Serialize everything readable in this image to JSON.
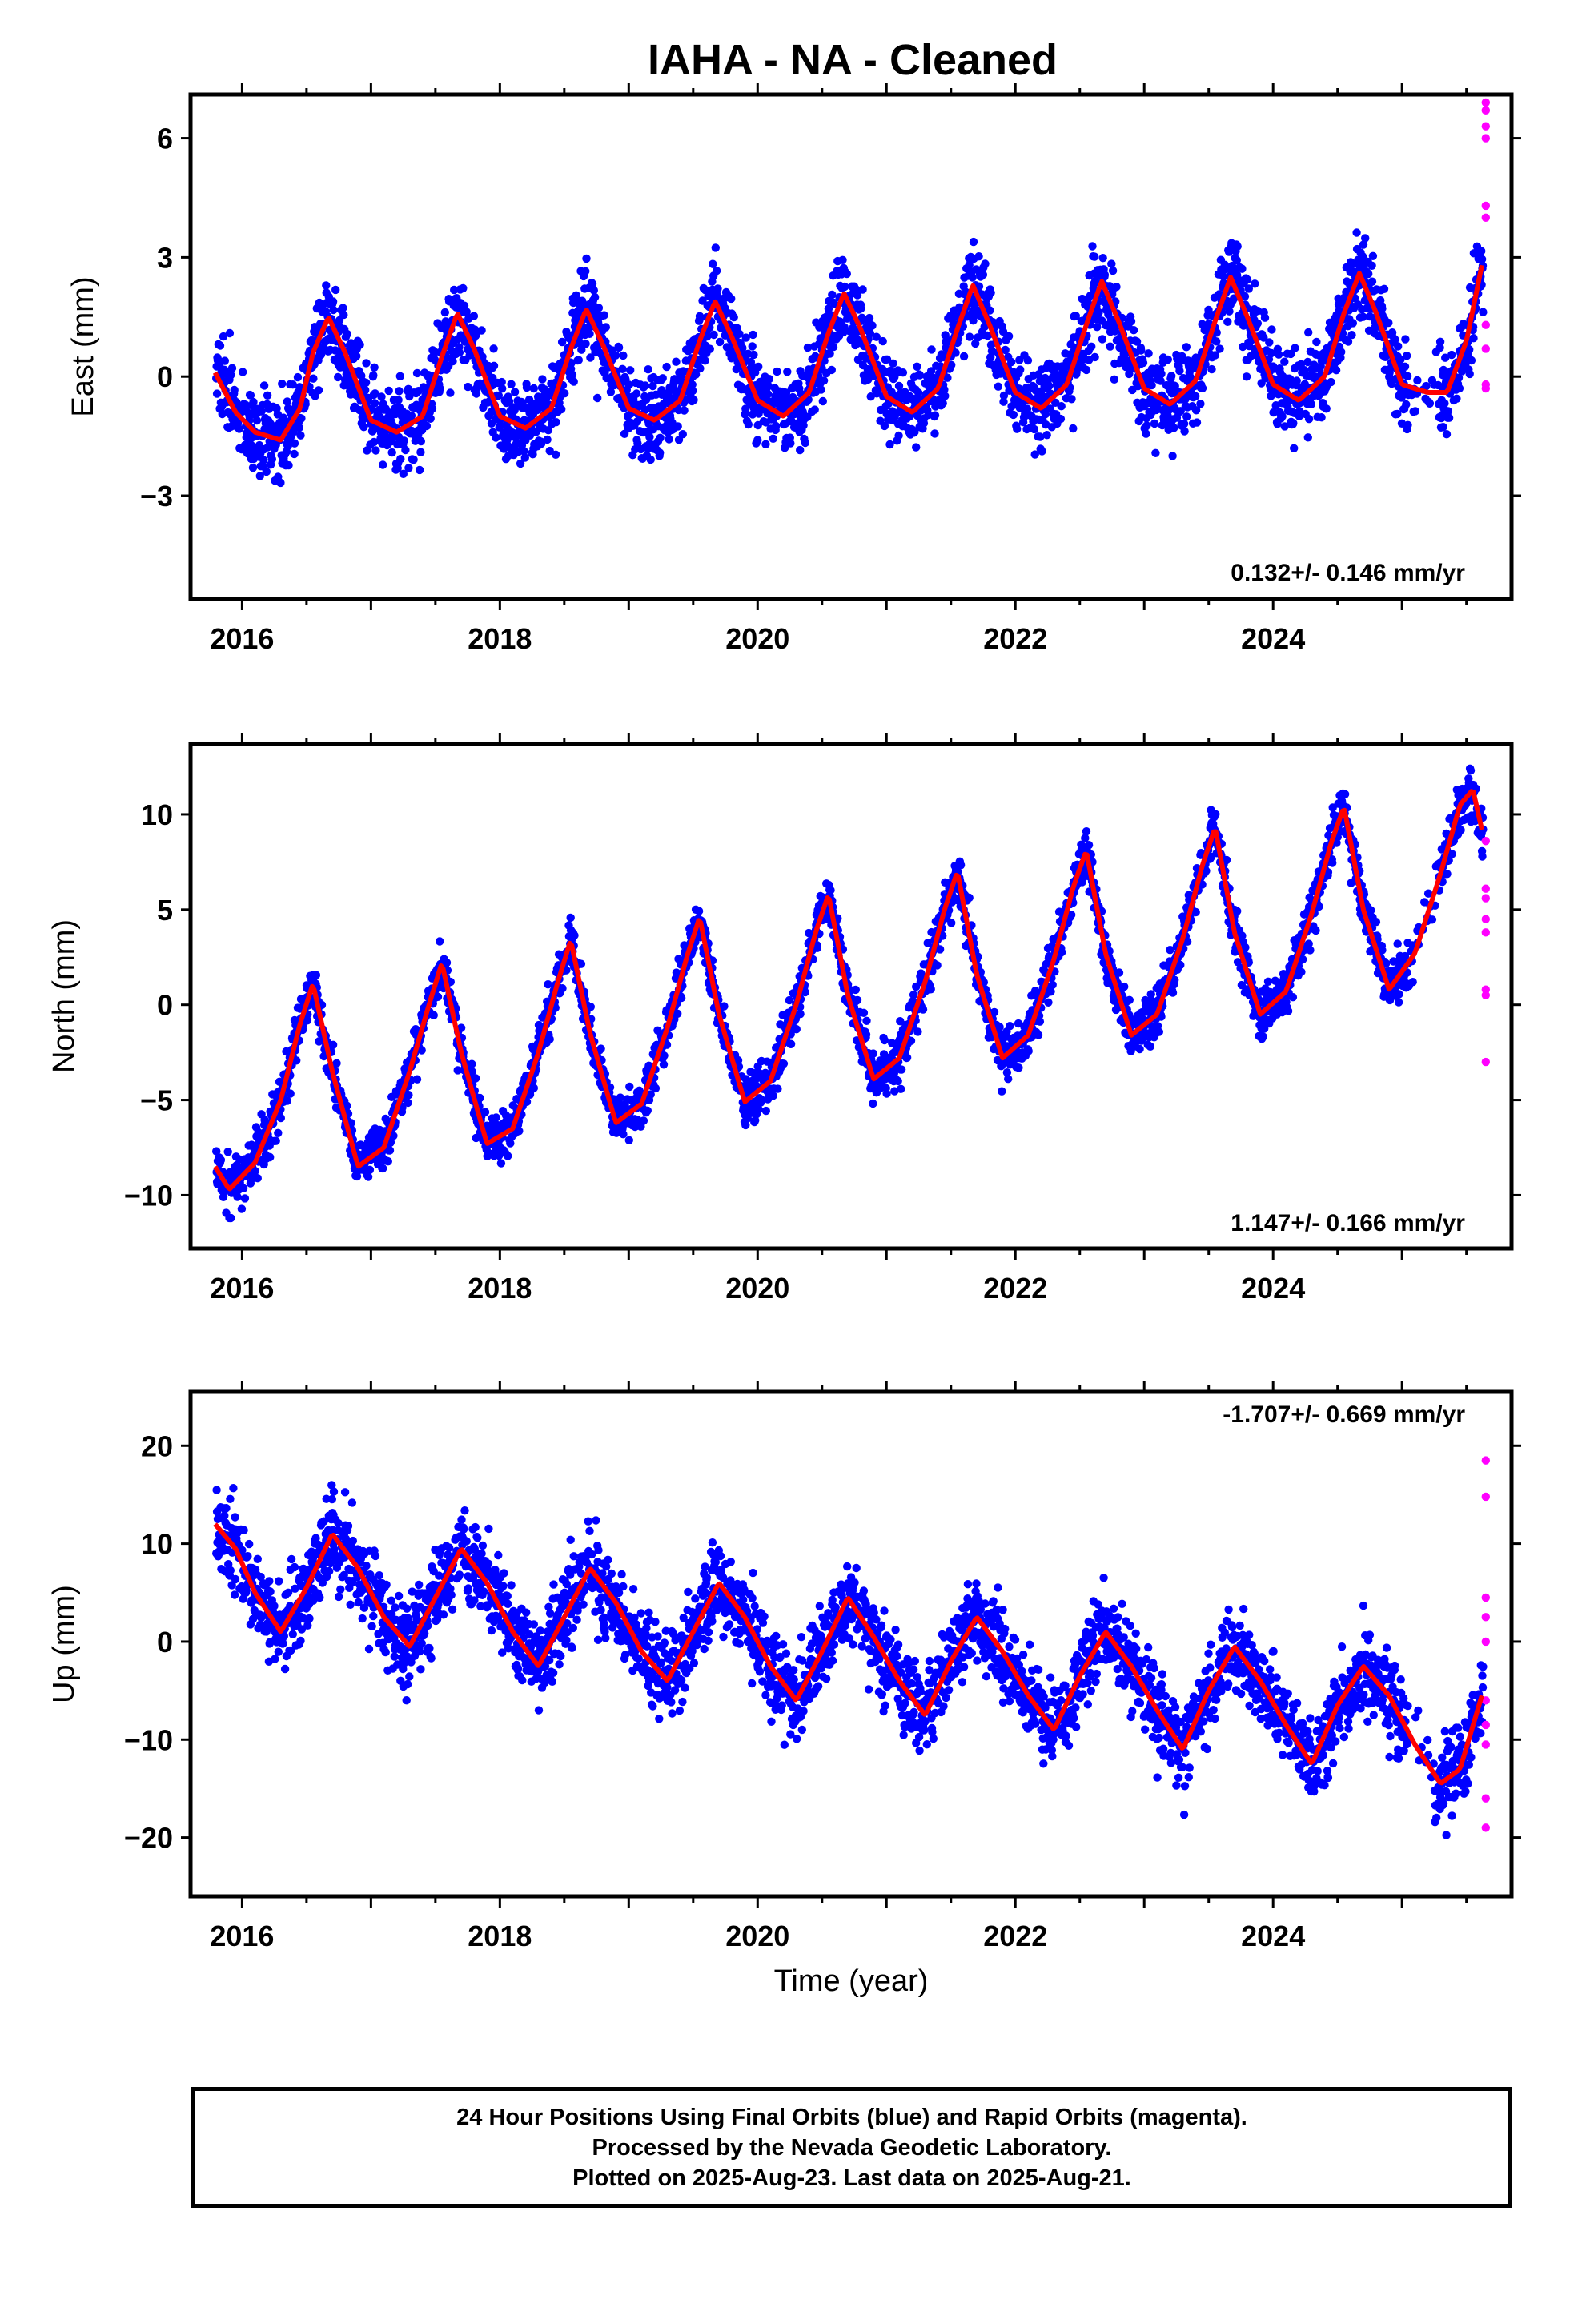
{
  "title": "IAHA  - NA - Cleaned",
  "colors": {
    "final": "#0000ff",
    "rapid": "#ff00ff",
    "fit": "#ff0000",
    "axis": "#000000"
  },
  "xlabel": "Time (year)",
  "xticks": [
    "2016",
    "2018",
    "2020",
    "2022",
    "2024"
  ],
  "footer": {
    "line1": "24 Hour Positions Using Final Orbits (blue) and Rapid Orbits (magenta).",
    "line2": "Processed by the Nevada Geodetic Laboratory.",
    "line3": "Plotted on 2025-Aug-23. Last data on 2025-Aug-21."
  },
  "chart_data": [
    {
      "type": "scatter",
      "ylabel": "East (mm)",
      "rate": "0.132+/- 0.146 mm/yr",
      "xlim": [
        2015.6,
        2025.85
      ],
      "ylim": [
        -5.6,
        7.1
      ],
      "yticks": [
        -3,
        0,
        3,
        6
      ],
      "ytick_labels": [
        "−3",
        "0",
        "3",
        "6"
      ],
      "series": [
        {
          "type": "line",
          "x": [
            2015.79,
            2015.95,
            2016.1,
            2016.3,
            2016.45,
            2016.55,
            2016.67,
            2016.8,
            2017.0,
            2017.2,
            2017.4,
            2017.55,
            2017.67,
            2017.8,
            2018.0,
            2018.2,
            2018.4,
            2018.55,
            2018.67,
            2018.8,
            2019.0,
            2019.2,
            2019.4,
            2019.55,
            2019.67,
            2019.8,
            2020.0,
            2020.2,
            2020.4,
            2020.55,
            2020.67,
            2020.8,
            2021.0,
            2021.2,
            2021.4,
            2021.55,
            2021.67,
            2021.8,
            2022.0,
            2022.2,
            2022.4,
            2022.55,
            2022.67,
            2022.8,
            2023.0,
            2023.2,
            2023.4,
            2023.55,
            2023.67,
            2023.8,
            2024.0,
            2024.2,
            2024.4,
            2024.55,
            2024.67,
            2024.8,
            2025.0,
            2025.2,
            2025.35,
            2025.5,
            2025.62
          ],
          "y": [
            0.1,
            -0.9,
            -1.4,
            -1.6,
            -0.8,
            0.6,
            1.5,
            0.6,
            -1.1,
            -1.4,
            -1.0,
            0.5,
            1.6,
            0.7,
            -1.0,
            -1.3,
            -0.8,
            0.7,
            1.7,
            0.8,
            -0.8,
            -1.1,
            -0.6,
            0.9,
            1.9,
            1.0,
            -0.6,
            -1.0,
            -0.4,
            1.1,
            2.1,
            1.2,
            -0.5,
            -0.9,
            -0.3,
            1.2,
            2.3,
            1.3,
            -0.4,
            -0.8,
            -0.2,
            1.3,
            2.4,
            1.4,
            -0.3,
            -0.7,
            -0.1,
            1.4,
            2.5,
            1.5,
            -0.2,
            -0.6,
            0.0,
            1.6,
            2.6,
            1.6,
            -0.2,
            -0.4,
            -0.4,
            0.9,
            2.8
          ]
        },
        {
          "type": "scatter",
          "name": "rapid",
          "x": [
            2025.65,
            2025.65,
            2025.65,
            2025.65,
            2025.65,
            2025.65,
            2025.65,
            2025.65,
            2025.65,
            2025.65
          ],
          "y": [
            6.9,
            6.7,
            6.3,
            6.0,
            4.3,
            4.0,
            1.3,
            0.7,
            -0.2,
            -0.3
          ]
        }
      ]
    },
    {
      "type": "scatter",
      "ylabel": "North (mm)",
      "rate": "1.147+/- 0.166 mm/yr",
      "xlim": [
        2015.6,
        2025.85
      ],
      "ylim": [
        -12.8,
        13.7
      ],
      "yticks": [
        -10,
        -5,
        0,
        5,
        10
      ],
      "ytick_labels": [
        "−10",
        "−5",
        "0",
        "5",
        "10"
      ],
      "series": [
        {
          "type": "line",
          "x": [
            2015.79,
            2015.9,
            2016.1,
            2016.3,
            2016.45,
            2016.55,
            2016.7,
            2016.9,
            2017.1,
            2017.3,
            2017.45,
            2017.55,
            2017.7,
            2017.9,
            2018.1,
            2018.3,
            2018.45,
            2018.55,
            2018.7,
            2018.9,
            2019.1,
            2019.3,
            2019.45,
            2019.55,
            2019.7,
            2019.9,
            2020.1,
            2020.3,
            2020.45,
            2020.55,
            2020.7,
            2020.9,
            2021.1,
            2021.3,
            2021.45,
            2021.55,
            2021.7,
            2021.9,
            2022.1,
            2022.3,
            2022.45,
            2022.55,
            2022.7,
            2022.9,
            2023.1,
            2023.3,
            2023.45,
            2023.55,
            2023.7,
            2023.9,
            2024.1,
            2024.3,
            2024.45,
            2024.55,
            2024.7,
            2024.9,
            2025.1,
            2025.3,
            2025.45,
            2025.55,
            2025.62
          ],
          "y": [
            -8.5,
            -9.7,
            -8.3,
            -5.0,
            -1.0,
            1.1,
            -3.5,
            -8.5,
            -7.5,
            -3.5,
            0.0,
            2.2,
            -2.5,
            -7.3,
            -6.5,
            -2.5,
            1.2,
            3.4,
            -1.5,
            -6.2,
            -5.2,
            -1.2,
            2.5,
            4.6,
            -0.5,
            -5.1,
            -4.0,
            0.0,
            3.8,
            5.8,
            0.5,
            -3.9,
            -2.8,
            1.2,
            5.0,
            7.0,
            1.6,
            -2.8,
            -1.6,
            2.4,
            6.2,
            8.1,
            2.7,
            -1.6,
            -0.5,
            3.5,
            7.3,
            9.3,
            3.8,
            -0.5,
            0.7,
            4.8,
            8.5,
            10.4,
            5.0,
            0.8,
            2.7,
            6.9,
            10.5,
            11.3,
            9.2
          ]
        },
        {
          "type": "scatter",
          "name": "rapid",
          "x": [
            2025.65,
            2025.65,
            2025.65,
            2025.65,
            2025.65,
            2025.65,
            2025.65,
            2025.65
          ],
          "y": [
            8.6,
            6.1,
            5.6,
            4.5,
            3.8,
            0.8,
            0.5,
            -3.0
          ]
        }
      ]
    },
    {
      "type": "scatter",
      "ylabel": "Up (mm)",
      "rate": "-1.707+/- 0.669 mm/yr",
      "xlim": [
        2015.6,
        2025.85
      ],
      "ylim": [
        -26,
        25.5
      ],
      "yticks": [
        -20,
        -10,
        0,
        10,
        20
      ],
      "ytick_labels": [
        "−20",
        "−10",
        "0",
        "10",
        "20"
      ],
      "series": [
        {
          "type": "line",
          "x": [
            2015.79,
            2015.95,
            2016.1,
            2016.3,
            2016.5,
            2016.7,
            2016.9,
            2017.1,
            2017.3,
            2017.5,
            2017.7,
            2017.9,
            2018.1,
            2018.3,
            2018.5,
            2018.7,
            2018.9,
            2019.1,
            2019.3,
            2019.5,
            2019.7,
            2019.9,
            2020.1,
            2020.3,
            2020.5,
            2020.7,
            2020.9,
            2021.1,
            2021.3,
            2021.5,
            2021.7,
            2021.9,
            2022.1,
            2022.3,
            2022.5,
            2022.7,
            2022.9,
            2023.1,
            2023.3,
            2023.5,
            2023.7,
            2023.9,
            2024.1,
            2024.3,
            2024.5,
            2024.7,
            2024.9,
            2025.1,
            2025.3,
            2025.45,
            2025.62
          ],
          "y": [
            12.0,
            9.5,
            5.0,
            1.0,
            5.5,
            11.0,
            7.5,
            2.5,
            -0.5,
            4.5,
            9.5,
            6.0,
            1.0,
            -2.5,
            2.5,
            7.5,
            4.0,
            -1.0,
            -4.0,
            1.0,
            6.0,
            2.5,
            -2.5,
            -6.0,
            -1.0,
            4.5,
            0.5,
            -4.0,
            -7.5,
            -2.0,
            2.5,
            -1.0,
            -5.5,
            -9.0,
            -3.5,
            1.0,
            -2.5,
            -7.0,
            -11.0,
            -5.0,
            -0.5,
            -4.0,
            -8.5,
            -12.5,
            -6.5,
            -2.5,
            -5.5,
            -10.5,
            -14.5,
            -13.0,
            -5.5
          ]
        },
        {
          "type": "scatter",
          "name": "rapid",
          "x": [
            2025.65,
            2025.65,
            2025.65,
            2025.65,
            2025.65,
            2025.65,
            2025.65,
            2025.65,
            2025.65,
            2025.65
          ],
          "y": [
            18.5,
            14.8,
            4.5,
            2.5,
            0.0,
            -6.0,
            -8.5,
            -10.5,
            -16.0,
            -19.0
          ]
        }
      ]
    }
  ]
}
